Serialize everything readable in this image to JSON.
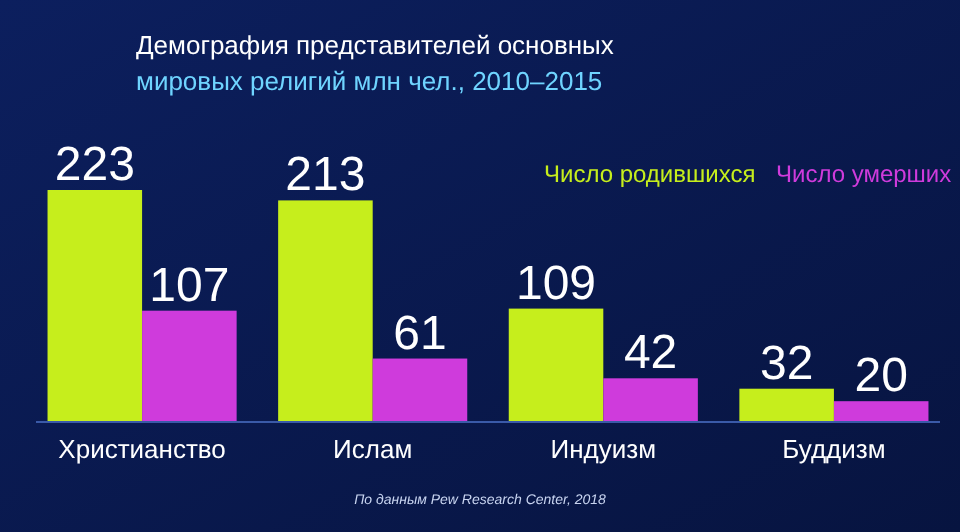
{
  "chart_data": {
    "type": "bar",
    "title": "Демография представителей основных",
    "subtitle": "мировых религий млн чел., 2010–2015",
    "categories": [
      "Христианство",
      "Ислам",
      "Индуизм",
      "Буддизм"
    ],
    "series": [
      {
        "name": "Число родившихся",
        "color": "#c6ee1c",
        "values": [
          223,
          213,
          109,
          32
        ]
      },
      {
        "name": "Число умерших",
        "color": "#cf3bdc",
        "values": [
          107,
          61,
          42,
          20
        ]
      }
    ],
    "data_labels": true,
    "legend": "top right",
    "annotations": [
      "По данным Pew Research Center, 2018"
    ]
  }
}
